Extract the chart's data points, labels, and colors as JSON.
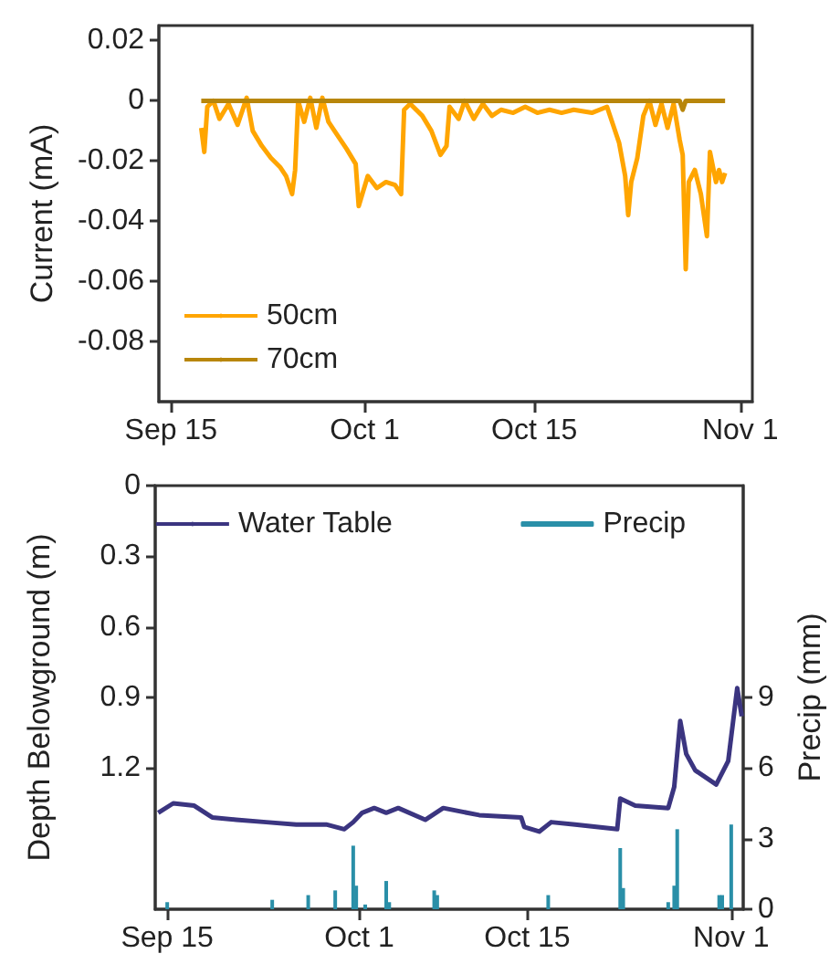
{
  "chart_data": [
    {
      "type": "line",
      "ylabel": "Current (mA)",
      "xlim": [
        "--09-14",
        "--11-02"
      ],
      "ylim": [
        -0.1,
        0.025
      ],
      "xticks": [
        {
          "value": "--09-15",
          "label": "Sep 15"
        },
        {
          "value": "--10-01",
          "label": "Oct 1"
        },
        {
          "value": "--10-15",
          "label": "Oct 15"
        },
        {
          "value": "--11-01",
          "label": "Nov 1"
        }
      ],
      "yticks": [
        0.02,
        0,
        -0.02,
        -0.04,
        -0.06,
        -0.08
      ],
      "grid": false,
      "legend": "bottom left",
      "marker": "none",
      "line_style": "solid",
      "series": [
        {
          "name": "50cm",
          "color": "#ffa500",
          "x": [
            "--09-17T12:00",
            "--09-17T18:00",
            "--09-18T00:00",
            "--09-18T12:00",
            "--09-19T00:00",
            "--09-19T18:00",
            "--09-20T12:00",
            "--09-21T06:00",
            "--09-21T18:00",
            "--09-22T12:00",
            "--09-23T06:00",
            "--09-24T00:00",
            "--09-24T12:00",
            "--09-25T00:00",
            "--09-25T06:00",
            "--09-25T12:00",
            "--09-26T00:00",
            "--09-26T12:00",
            "--09-27T00:00",
            "--09-27T12:00",
            "--09-28T00:00",
            "--09-28T12:00",
            "--09-29T12:00",
            "--09-30T06:00",
            "--09-30T12:00",
            "--10-01T06:00",
            "--10-02T00:00",
            "--10-02T18:00",
            "--10-03T12:00",
            "--10-04T00:00",
            "--10-04T06:00",
            "--10-04T18:00",
            "--10-05T18:00",
            "--10-06T12:00",
            "--10-07T06:00",
            "--10-07T18:00",
            "--10-08T00:00",
            "--10-08T18:00",
            "--10-09T06:00",
            "--10-10T00:00",
            "--10-10T18:00",
            "--10-11T12:00",
            "--10-12T06:00",
            "--10-13T06:00",
            "--10-14T06:00",
            "--10-15T06:00",
            "--10-16T06:00",
            "--10-17T06:00",
            "--10-18T06:00",
            "--10-19T18:00",
            "--10-21T00:00",
            "--10-21T12:00",
            "--10-22T00:00",
            "--10-22T12:00",
            "--10-22T18:00",
            "--10-23T00:00",
            "--10-23T12:00",
            "--10-24T00:00",
            "--10-24T12:00",
            "--10-25T00:00",
            "--10-25T12:00",
            "--10-26T00:00",
            "--10-26T12:00",
            "--10-27T00:00",
            "--10-27T06:00",
            "--10-27T12:00",
            "--10-27T18:00",
            "--10-28T06:00",
            "--10-28T18:00",
            "--10-29T06:00",
            "--10-29T12:00",
            "--10-30T00:00",
            "--10-30T06:00",
            "--10-30T12:00",
            "--10-30T18:00"
          ],
          "values": [
            -0.009,
            -0.017,
            -0.002,
            0,
            -0.006,
            -0.001,
            -0.008,
            0.001,
            -0.01,
            -0.015,
            -0.019,
            -0.022,
            -0.025,
            -0.031,
            -0.023,
            0,
            -0.007,
            0.001,
            -0.009,
            0.001,
            -0.007,
            -0.01,
            -0.016,
            -0.021,
            -0.035,
            -0.025,
            -0.029,
            -0.027,
            -0.028,
            -0.031,
            -0.003,
            -0.001,
            -0.005,
            -0.01,
            -0.018,
            -0.015,
            -0.002,
            -0.006,
            0,
            -0.006,
            -0.001,
            -0.005,
            -0.003,
            -0.004,
            -0.002,
            -0.004,
            -0.003,
            -0.004,
            -0.003,
            -0.004,
            -0.002,
            -0.008,
            -0.014,
            -0.025,
            -0.038,
            -0.027,
            -0.019,
            -0.005,
            0,
            -0.008,
            -0.001,
            -0.009,
            -0.001,
            -0.013,
            -0.018,
            -0.056,
            -0.027,
            -0.023,
            -0.031,
            -0.045,
            -0.017,
            -0.027,
            -0.023,
            -0.027,
            -0.024
          ]
        },
        {
          "name": "70cm",
          "color": "#b8860b",
          "x": [
            "--09-17T12:00",
            "--10-27T00:00",
            "--10-27T06:00",
            "--10-27T12:00",
            "--10-30T18:00"
          ],
          "values": [
            0,
            0,
            -0.003,
            0,
            0
          ]
        }
      ]
    },
    {
      "type": "line",
      "ylabel": "Depth Belowground (m)",
      "y2label": "Precip (mm)",
      "xlim": [
        "--09-14",
        "--11-02"
      ],
      "ylim": [
        1.8,
        0
      ],
      "y2lim": [
        0,
        18
      ],
      "xticks": [
        {
          "value": "--09-15",
          "label": "Sep 15"
        },
        {
          "value": "--10-01",
          "label": "Oct 1"
        },
        {
          "value": "--10-15",
          "label": "Oct 15"
        },
        {
          "value": "--11-01",
          "label": "Nov 1"
        }
      ],
      "yticks": [
        0,
        0.3,
        0.6,
        0.9,
        1.2
      ],
      "y2ticks": [
        0,
        3,
        6,
        9
      ],
      "grid": false,
      "legend": "top",
      "marker": "none",
      "line_style": "solid",
      "series": [
        {
          "name": "Water Table",
          "color": "#3b3580",
          "x": [
            "--09-14T06:00",
            "--09-15T12:00",
            "--09-17T06:00",
            "--09-18T18:00",
            "--09-20T18:00",
            "--09-23T06:00",
            "--09-25T18:00",
            "--09-28T06:00",
            "--09-29T18:00",
            "--09-30T12:00",
            "--10-01T06:00",
            "--10-02T06:00",
            "--10-03T06:00",
            "--10-04T06:00",
            "--10-06T12:00",
            "--10-08T00:00",
            "--10-11T00:00",
            "--10-14T12:00",
            "--10-14T18:00",
            "--10-16T00:00",
            "--10-17T00:00",
            "--10-19T00:00",
            "--10-22T12:00",
            "--10-22T18:00",
            "--10-24T00:00",
            "--10-26T18:00",
            "--10-27T06:00",
            "--10-27T18:00",
            "--10-28T06:00",
            "--10-29T00:00",
            "--10-30T18:00",
            "--10-31T18:00",
            "--11-01T12:00",
            "--11-01T21:00"
          ],
          "values": [
            1.39,
            1.35,
            1.36,
            1.41,
            1.42,
            1.43,
            1.44,
            1.44,
            1.46,
            1.43,
            1.39,
            1.37,
            1.39,
            1.37,
            1.42,
            1.37,
            1.4,
            1.41,
            1.45,
            1.47,
            1.43,
            1.44,
            1.46,
            1.33,
            1.36,
            1.37,
            1.28,
            1.0,
            1.14,
            1.21,
            1.27,
            1.17,
            0.86,
            0.98
          ]
        },
        {
          "name": "Precip",
          "type": "bar",
          "axis": "y2",
          "color": "#2a8fa8",
          "x": [
            "--09-15T00:00",
            "--09-23T18:00",
            "--09-26T18:00",
            "--09-29T00:00",
            "--09-30T12:00",
            "--09-30T18:00",
            "--10-01T12:00",
            "--10-03T06:00",
            "--10-03T12:00",
            "--10-07T06:00",
            "--10-07T12:00",
            "--10-16T18:00",
            "--10-22T18:00",
            "--10-23T00:00",
            "--10-26T18:00",
            "--10-27T06:00",
            "--10-27T12:00",
            "--10-31T00:00",
            "--10-31T06:00",
            "--11-01T00:00"
          ],
          "values": [
            0.3,
            0.4,
            0.6,
            0.8,
            2.7,
            1.0,
            0.2,
            1.2,
            0.3,
            0.8,
            0.6,
            0.6,
            2.6,
            0.9,
            0.3,
            1.0,
            3.4,
            0.6,
            0.6,
            3.6
          ]
        }
      ]
    }
  ]
}
